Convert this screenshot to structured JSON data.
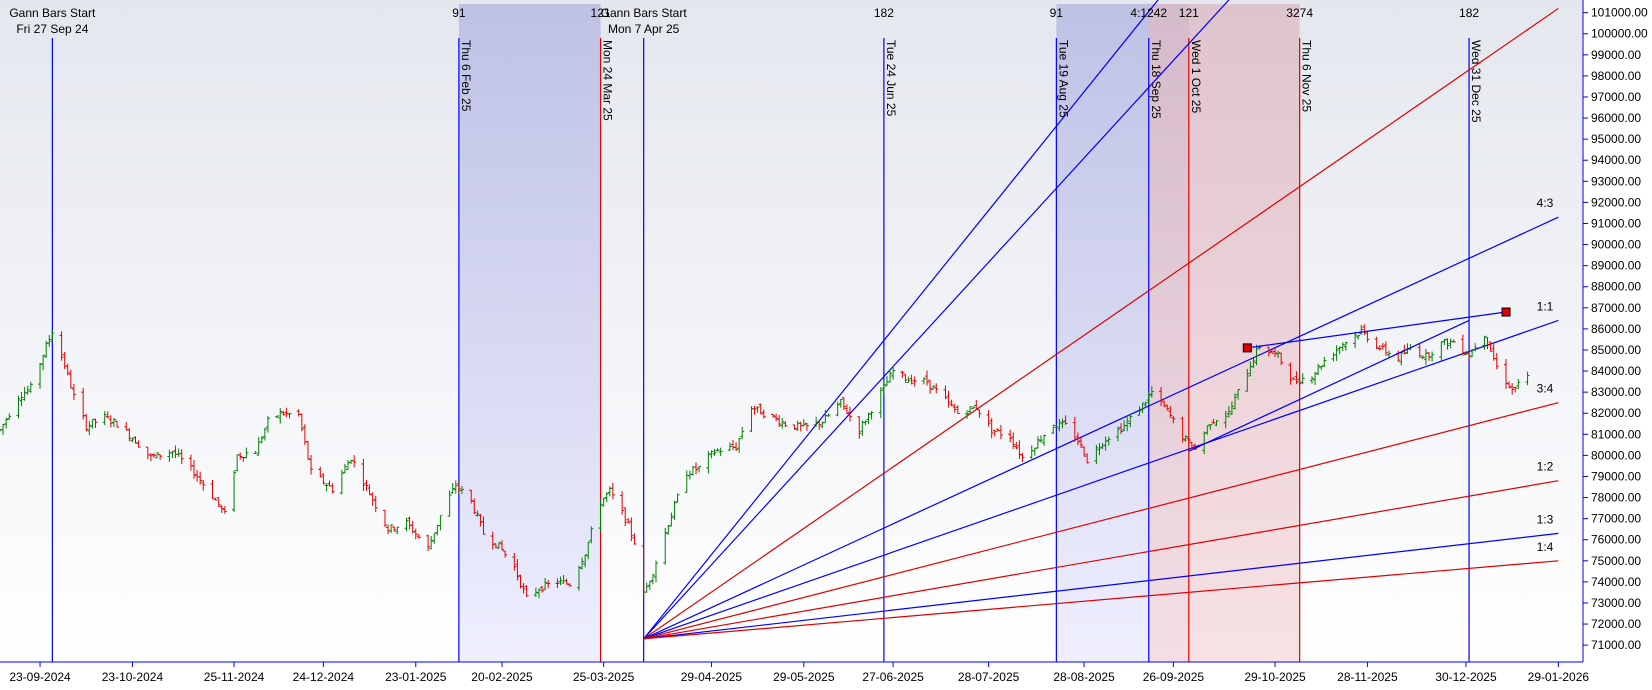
{
  "chart_data": {
    "type": "bar",
    "style": "ohlc",
    "up_color": "#008000",
    "down_color": "#e00000",
    "background_gradient": [
      "#e4e7ee",
      "#ffffff"
    ],
    "y_axis": {
      "side": "right",
      "range": [
        70200,
        101600
      ],
      "tick_values": [
        71000,
        72000,
        73000,
        74000,
        75000,
        76000,
        77000,
        78000,
        79000,
        80000,
        81000,
        82000,
        83000,
        84000,
        85000,
        86000,
        87000,
        88000,
        89000,
        90000,
        91000,
        92000,
        93000,
        94000,
        95000,
        96000,
        97000,
        98000,
        99000,
        100000,
        101000
      ],
      "tick_labels": [
        "71000.00",
        "72000.00",
        "73000.00",
        "74000.00",
        "75000.00",
        "76000.00",
        "77000.00",
        "78000.00",
        "79000.00",
        "80000.00",
        "81000.00",
        "82000.00",
        "83000.00",
        "84000.00",
        "85000.00",
        "86000.00",
        "87000.00",
        "88000.00",
        "89000.00",
        "90000.00",
        "91000.00",
        "92000.00",
        "93000.00",
        "94000.00",
        "95000.00",
        "96000.00",
        "97000.00",
        "98000.00",
        "99000.00",
        "100000.00",
        "101000.00"
      ]
    },
    "x_axis": {
      "range": [
        "2024-09-10",
        "2026-02-06"
      ],
      "ticks": [
        {
          "date": "2024-09-23",
          "label": "23-09-2024"
        },
        {
          "date": "2024-10-23",
          "label": "23-10-2024"
        },
        {
          "date": "2024-11-25",
          "label": "25-11-2024"
        },
        {
          "date": "2024-12-24",
          "label": "24-12-2024"
        },
        {
          "date": "2025-01-23",
          "label": "23-01-2025"
        },
        {
          "date": "2025-02-20",
          "label": "20-02-2025"
        },
        {
          "date": "2025-03-25",
          "label": "25-03-2025"
        },
        {
          "date": "2025-04-29",
          "label": "29-04-2025"
        },
        {
          "date": "2025-05-29",
          "label": "29-05-2025"
        },
        {
          "date": "2025-06-27",
          "label": "27-06-2025"
        },
        {
          "date": "2025-07-28",
          "label": "28-07-2025"
        },
        {
          "date": "2025-08-28",
          "label": "28-08-2025"
        },
        {
          "date": "2025-09-26",
          "label": "26-09-2025"
        },
        {
          "date": "2025-10-29",
          "label": "29-10-2025"
        },
        {
          "date": "2025-11-28",
          "label": "28-11-2025"
        },
        {
          "date": "2025-12-30",
          "label": "30-12-2025"
        },
        {
          "date": "2026-01-29",
          "label": "29-01-2026"
        }
      ]
    },
    "price_path": [
      [
        "2024-09-10",
        81200
      ],
      [
        "2024-09-16",
        82800
      ],
      [
        "2024-09-20",
        83200
      ],
      [
        "2024-09-24",
        84800
      ],
      [
        "2024-09-27",
        85900
      ],
      [
        "2024-10-01",
        84300
      ],
      [
        "2024-10-04",
        82800
      ],
      [
        "2024-10-08",
        81400
      ],
      [
        "2024-10-14",
        81800
      ],
      [
        "2024-10-18",
        81500
      ],
      [
        "2024-10-24",
        80700
      ],
      [
        "2024-10-29",
        79900
      ],
      [
        "2024-11-05",
        80200
      ],
      [
        "2024-11-12",
        79200
      ],
      [
        "2024-11-18",
        78100
      ],
      [
        "2024-11-22",
        77200
      ],
      [
        "2024-11-26",
        80000
      ],
      [
        "2024-12-02",
        80200
      ],
      [
        "2024-12-06",
        81600
      ],
      [
        "2024-12-10",
        82000
      ],
      [
        "2024-12-16",
        81900
      ],
      [
        "2024-12-20",
        79200
      ],
      [
        "2024-12-27",
        78400
      ],
      [
        "2025-01-02",
        79900
      ],
      [
        "2025-01-08",
        78200
      ],
      [
        "2025-01-14",
        76500
      ],
      [
        "2025-01-20",
        76800
      ],
      [
        "2025-01-27",
        75600
      ],
      [
        "2025-02-01",
        77500
      ],
      [
        "2025-02-05",
        78600
      ],
      [
        "2025-02-10",
        77800
      ],
      [
        "2025-02-14",
        76300
      ],
      [
        "2025-02-19",
        75700
      ],
      [
        "2025-02-24",
        74700
      ],
      [
        "2025-02-28",
        73200
      ],
      [
        "2025-03-04",
        73700
      ],
      [
        "2025-03-10",
        74000
      ],
      [
        "2025-03-14",
        73900
      ],
      [
        "2025-03-19",
        75400
      ],
      [
        "2025-03-24",
        77800
      ],
      [
        "2025-03-27",
        78300
      ],
      [
        "2025-04-01",
        77000
      ],
      [
        "2025-04-04",
        75900
      ],
      [
        "2025-04-07",
        73400
      ],
      [
        "2025-04-10",
        74500
      ],
      [
        "2025-04-15",
        76800
      ],
      [
        "2025-04-21",
        79200
      ],
      [
        "2025-04-25",
        79400
      ],
      [
        "2025-04-30",
        80200
      ],
      [
        "2025-05-07",
        80400
      ],
      [
        "2025-05-12",
        82300
      ],
      [
        "2025-05-16",
        82000
      ],
      [
        "2025-05-23",
        81500
      ],
      [
        "2025-05-29",
        81300
      ],
      [
        "2025-06-04",
        81600
      ],
      [
        "2025-06-10",
        82500
      ],
      [
        "2025-06-16",
        81200
      ],
      [
        "2025-06-20",
        82200
      ],
      [
        "2025-06-27",
        84000
      ],
      [
        "2025-07-02",
        83600
      ],
      [
        "2025-07-08",
        83500
      ],
      [
        "2025-07-14",
        82600
      ],
      [
        "2025-07-18",
        82000
      ],
      [
        "2025-07-24",
        82300
      ],
      [
        "2025-07-29",
        81200
      ],
      [
        "2025-08-04",
        80900
      ],
      [
        "2025-08-08",
        79900
      ],
      [
        "2025-08-12",
        80500
      ],
      [
        "2025-08-18",
        81500
      ],
      [
        "2025-08-22",
        81400
      ],
      [
        "2025-08-26",
        80700
      ],
      [
        "2025-08-29",
        79800
      ],
      [
        "2025-09-04",
        80800
      ],
      [
        "2025-09-10",
        81400
      ],
      [
        "2025-09-16",
        82400
      ],
      [
        "2025-09-19",
        83000
      ],
      [
        "2025-09-24",
        82100
      ],
      [
        "2025-09-29",
        80900
      ],
      [
        "2025-10-03",
        80300
      ],
      [
        "2025-10-08",
        81600
      ],
      [
        "2025-10-14",
        82000
      ],
      [
        "2025-10-20",
        84000
      ],
      [
        "2025-10-24",
        85200
      ],
      [
        "2025-10-30",
        84700
      ],
      [
        "2025-11-04",
        83500
      ],
      [
        "2025-11-10",
        83800
      ],
      [
        "2025-11-14",
        84500
      ],
      [
        "2025-11-20",
        85300
      ],
      [
        "2025-11-26",
        85900
      ],
      [
        "2025-12-02",
        85100
      ],
      [
        "2025-12-08",
        84600
      ],
      [
        "2025-12-12",
        85100
      ],
      [
        "2025-12-17",
        84700
      ],
      [
        "2025-12-22",
        85300
      ],
      [
        "2025-12-26",
        85400
      ],
      [
        "2025-12-31",
        84800
      ],
      [
        "2026-01-05",
        85800
      ],
      [
        "2026-01-09",
        84200
      ],
      [
        "2026-01-14",
        83100
      ],
      [
        "2026-01-19",
        83700
      ]
    ],
    "vertical_lines": [
      {
        "date": "2024-09-27",
        "color": "#0000ff",
        "label": "",
        "header": [
          "Gann Bars Start",
          "Fri 27 Sep 24"
        ]
      },
      {
        "date": "2025-02-06",
        "color": "#0000ff",
        "label": "Thu 6 Feb 25",
        "header": [
          "91"
        ]
      },
      {
        "date": "2025-03-24",
        "color": "#e00000",
        "label": "Mon 24 Mar 25",
        "header": [
          "121"
        ]
      },
      {
        "date": "2025-04-07",
        "color": "#0000ff",
        "label": "",
        "header": [
          "Gann Bars Start",
          "Mon 7 Apr 25"
        ]
      },
      {
        "date": "2025-06-24",
        "color": "#0000ff",
        "label": "Tue 24 Jun 25",
        "header": [
          "182"
        ]
      },
      {
        "date": "2025-08-19",
        "color": "#0000ff",
        "label": "Tue 19 Aug 25",
        "header": [
          "91"
        ]
      },
      {
        "date": "2025-09-18",
        "color": "#0000ff",
        "label": "Thu 18 Sep 25",
        "header": [
          "4:1242"
        ]
      },
      {
        "date": "2025-10-01",
        "color": "#e00000",
        "label": "Wed 1 Oct 25",
        "header": [
          "121"
        ]
      },
      {
        "date": "2025-11-06",
        "color": "#e00000",
        "label": "Thu 6 Nov 25",
        "header": [
          "3274"
        ]
      },
      {
        "date": "2025-12-31",
        "color": "#0000ff",
        "label": "Wed 31 Dec 25",
        "header": [
          "182"
        ]
      }
    ],
    "shaded_zones": [
      {
        "from": "2025-02-06",
        "to": "2025-03-24",
        "color": "blue"
      },
      {
        "from": "2025-08-19",
        "to": "2025-10-01",
        "color": "blue"
      },
      {
        "from": "2025-09-18",
        "to": "2025-11-06",
        "color": "red"
      }
    ],
    "gann_fan": {
      "origin": [
        "2025-04-07",
        71300
      ],
      "lines": [
        {
          "to": [
            "2025-09-21",
            101600
          ],
          "color": "#0000ff",
          "label": ""
        },
        {
          "to": [
            "2025-10-14",
            101600
          ],
          "color": "#0000ff",
          "label": ""
        },
        {
          "to": [
            "2026-01-29",
            101200
          ],
          "color": "#e00000",
          "label": ""
        },
        {
          "to": [
            "2026-01-29",
            91300
          ],
          "color": "#0000ff",
          "label": "4:3"
        },
        {
          "to": [
            "2026-01-29",
            86400
          ],
          "color": "#0000ff",
          "label": "1:1"
        },
        {
          "to": [
            "2026-01-29",
            82500
          ],
          "color": "#e00000",
          "label": "3:4"
        },
        {
          "to": [
            "2026-01-29",
            78800
          ],
          "color": "#e00000",
          "label": "1:2"
        },
        {
          "to": [
            "2026-01-29",
            76300
          ],
          "color": "#0000ff",
          "label": "1:3"
        },
        {
          "to": [
            "2026-01-29",
            75000
          ],
          "color": "#e00000",
          "label": "1:4"
        }
      ]
    },
    "trendlines": [
      {
        "from": [
          "2025-10-20",
          85100
        ],
        "to": [
          "2026-01-12",
          86800
        ],
        "color": "#0000ff",
        "markers": true
      },
      {
        "from": [
          "2025-10-01",
          80200
        ],
        "to": [
          "2025-12-31",
          86400
        ],
        "color": "#0000ff",
        "markers": false
      }
    ]
  }
}
